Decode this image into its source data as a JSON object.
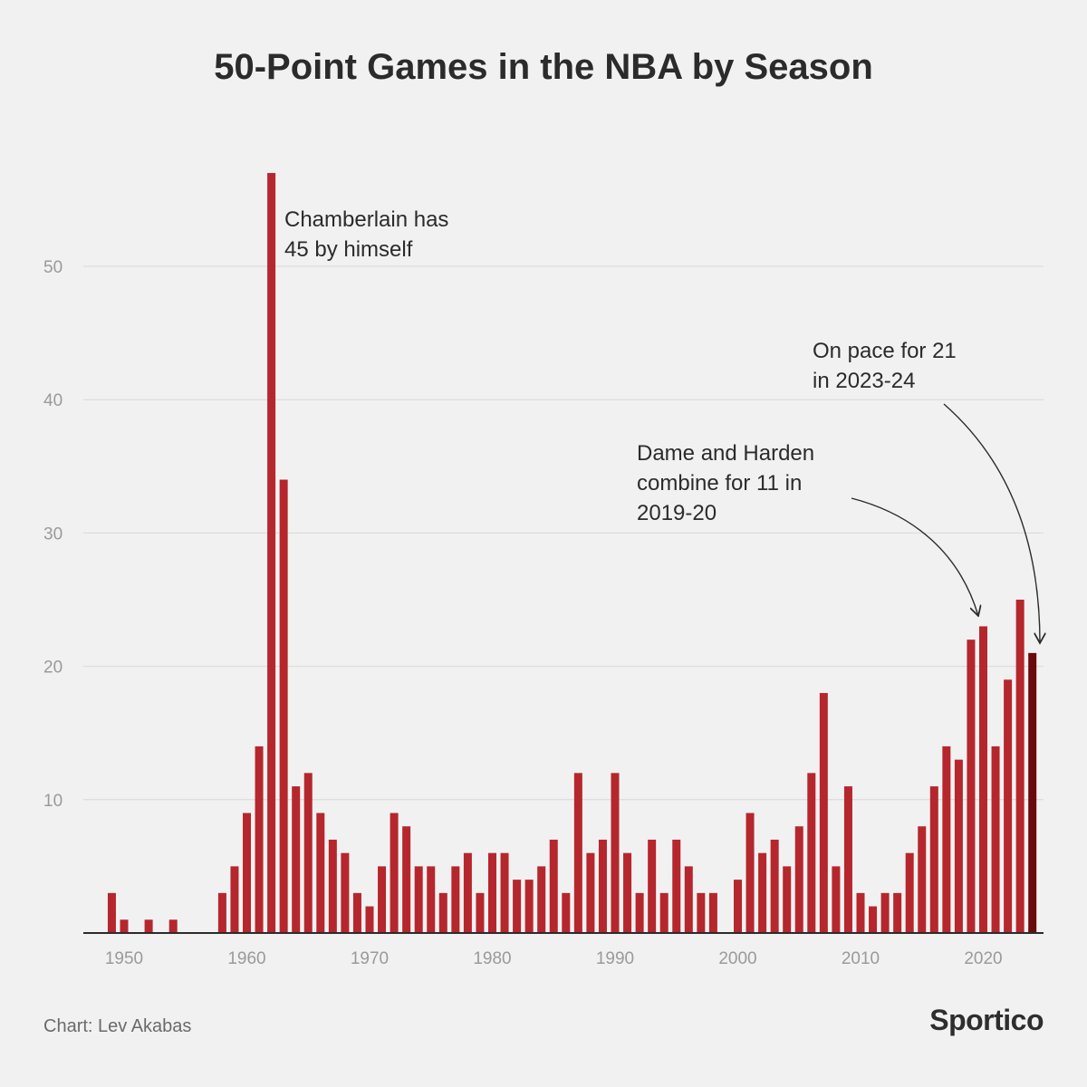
{
  "title": "50-Point Games in the NBA by Season",
  "credit": "Chart: Lev Akabas",
  "brand": "Sportico",
  "colors": {
    "bar": "#b5272d",
    "highlight": "#6a0a0d",
    "grid": "#d8d8d8",
    "axis": "#2b2b2b",
    "background": "#f1f1f1"
  },
  "chart_data": {
    "type": "bar",
    "title": "50-Point Games in the NBA by Season",
    "xlabel": "",
    "ylabel": "",
    "ylim": [
      0,
      57
    ],
    "xlim": [
      1946.5,
      2024.5
    ],
    "y_ticks": [
      10,
      20,
      30,
      40,
      50
    ],
    "x_ticks": [
      1950,
      1960,
      1970,
      1980,
      1990,
      2000,
      2010,
      2020
    ],
    "grid": true,
    "highlight_year": 2024,
    "x": [
      1947,
      1948,
      1949,
      1950,
      1951,
      1952,
      1953,
      1954,
      1955,
      1956,
      1957,
      1958,
      1959,
      1960,
      1961,
      1962,
      1963,
      1964,
      1965,
      1966,
      1967,
      1968,
      1969,
      1970,
      1971,
      1972,
      1973,
      1974,
      1975,
      1976,
      1977,
      1978,
      1979,
      1980,
      1981,
      1982,
      1983,
      1984,
      1985,
      1986,
      1987,
      1988,
      1989,
      1990,
      1991,
      1992,
      1993,
      1994,
      1995,
      1996,
      1997,
      1998,
      1999,
      2000,
      2001,
      2002,
      2003,
      2004,
      2005,
      2006,
      2007,
      2008,
      2009,
      2010,
      2011,
      2012,
      2013,
      2014,
      2015,
      2016,
      2017,
      2018,
      2019,
      2020,
      2021,
      2022,
      2023,
      2024
    ],
    "values": [
      0,
      0,
      3,
      1,
      0,
      1,
      0,
      1,
      0,
      0,
      0,
      3,
      5,
      9,
      14,
      57,
      34,
      11,
      12,
      9,
      7,
      6,
      3,
      2,
      5,
      9,
      8,
      5,
      5,
      3,
      5,
      6,
      3,
      6,
      6,
      4,
      4,
      5,
      7,
      3,
      12,
      6,
      7,
      12,
      6,
      3,
      7,
      3,
      7,
      5,
      3,
      3,
      0,
      4,
      9,
      6,
      7,
      5,
      8,
      12,
      18,
      5,
      11,
      3,
      2,
      3,
      3,
      6,
      8,
      11,
      14,
      13,
      22,
      23,
      14,
      19,
      25,
      21
    ],
    "annotations": [
      {
        "lines": [
          "Chamberlain has",
          "45 by himself"
        ],
        "year": 1962
      },
      {
        "lines": [
          "Dame and Harden",
          "combine for 11 in",
          "2019-20"
        ],
        "year": 2020
      },
      {
        "lines": [
          "On pace for 21",
          "in 2023-24"
        ],
        "year": 2024
      }
    ]
  }
}
